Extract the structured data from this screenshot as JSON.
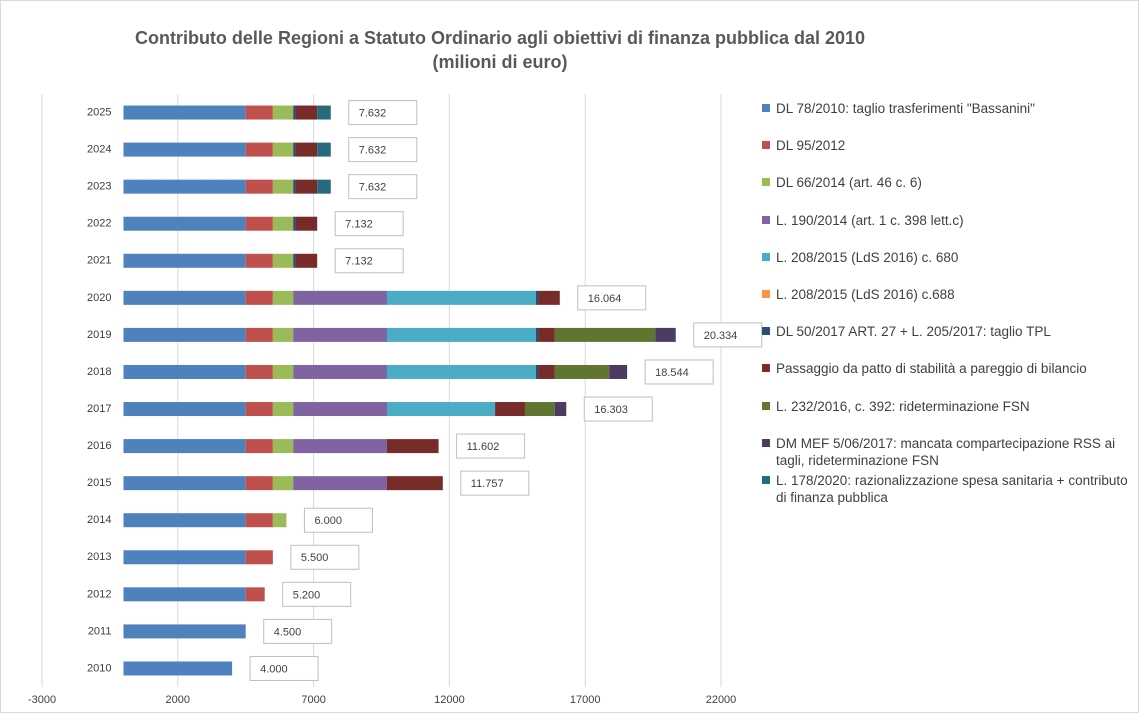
{
  "chart_data": {
    "type": "stacked-barh",
    "title": "Contributo delle Regioni a Statuto Ordinario agli obiettivi di finanza pubblica dal 2010",
    "subtitle": "(milioni di euro)",
    "categories": [
      "2010",
      "2011",
      "2012",
      "2013",
      "2014",
      "2015",
      "2016",
      "2017",
      "2018",
      "2019",
      "2020",
      "2021",
      "2022",
      "2023",
      "2024",
      "2025"
    ],
    "series": [
      {
        "name": "DL 78/2010: taglio trasferimenti \"Bassanini\"",
        "color": "#4f81bd",
        "values": [
          4000,
          4500,
          4500,
          4500,
          4500,
          4500,
          4500,
          4500,
          4500,
          4500,
          4500,
          4500,
          4500,
          4500,
          4500,
          4500
        ]
      },
      {
        "name": "DL 95/2012",
        "color": "#c0504d",
        "values": [
          null,
          null,
          700,
          1000,
          1000,
          1000,
          1000,
          1000,
          1000,
          1000,
          1000,
          1000,
          1000,
          1000,
          1000,
          1000
        ]
      },
      {
        "name": "DL 66/2014 (art. 46 c. 6)",
        "color": "#9bbb59",
        "values": [
          null,
          null,
          null,
          null,
          500,
          750,
          750,
          750,
          750,
          750,
          750,
          750,
          750,
          750,
          750,
          750
        ]
      },
      {
        "name": "L. 190/2014 (art. 1 c. 398 lett.c)",
        "color": "#8064a2",
        "values": [
          null,
          null,
          null,
          null,
          null,
          3452,
          3452,
          3452,
          3452,
          3452,
          3452,
          null,
          null,
          null,
          null,
          null
        ]
      },
      {
        "name": "L. 208/2015 (LdS 2016) c. 680",
        "color": "#4bacc6",
        "values": [
          null,
          null,
          null,
          null,
          null,
          null,
          null,
          3980,
          5480,
          5480,
          5480,
          null,
          null,
          null,
          null,
          null
        ]
      },
      {
        "name": "L. 208/2015 (LdS 2016) c.688",
        "color": "#f79646",
        "values": [
          null,
          null,
          null,
          null,
          null,
          null,
          null,
          null,
          null,
          null,
          null,
          null,
          null,
          null,
          null,
          null
        ]
      },
      {
        "name": "DL 50/2017 ART. 27 + L. 205/2017: taglio TPL",
        "color": "#2c4d75",
        "values": [
          null,
          null,
          null,
          null,
          null,
          null,
          null,
          null,
          100,
          100,
          100,
          100,
          100,
          100,
          100,
          100
        ]
      },
      {
        "name": "Passaggio da patto di stabilità a pareggio di bilancio",
        "color": "#772c2a",
        "values": [
          null,
          null,
          null,
          null,
          null,
          2055,
          1900,
          1100,
          600,
          600,
          782,
          782,
          782,
          782,
          782,
          782
        ]
      },
      {
        "name": "L. 232/2016, c. 392: rideterminazione FSN",
        "color": "#5f7530",
        "values": [
          null,
          null,
          null,
          null,
          null,
          null,
          null,
          1100,
          2000,
          3700,
          null,
          null,
          null,
          null,
          null,
          null
        ]
      },
      {
        "name": "DM MEF 5/06/2017: mancata compartecipazione RSS ai tagli, rideterminazione FSN",
        "color": "#4d3b62",
        "values": [
          null,
          null,
          null,
          null,
          null,
          null,
          null,
          421,
          662,
          752,
          null,
          null,
          null,
          null,
          null,
          null
        ]
      },
      {
        "name": "L. 178/2020: razionalizzazione spesa sanitaria + contributo di finanza pubblica",
        "color": "#276a7c",
        "values": [
          null,
          null,
          null,
          null,
          null,
          null,
          null,
          null,
          null,
          null,
          null,
          null,
          null,
          500,
          500,
          500
        ]
      }
    ],
    "totals": [
      4000,
      4500,
      5200,
      5500,
      6000,
      11757,
      11602,
      16303,
      18544,
      20334,
      16064,
      7132,
      7132,
      7632,
      7632,
      7632
    ],
    "total_labels": [
      "4.000",
      "4.500",
      "5.200",
      "5.500",
      "6.000",
      "11.757",
      "11.602",
      "16.303",
      "18.544",
      "20.334",
      "16.064",
      "7.132",
      "7.132",
      "7.632",
      "7.632",
      "7.632"
    ],
    "xlim": [
      -3000,
      22000
    ],
    "xticks": [
      -3000,
      2000,
      7000,
      12000,
      17000,
      22000
    ],
    "grid": true
  }
}
